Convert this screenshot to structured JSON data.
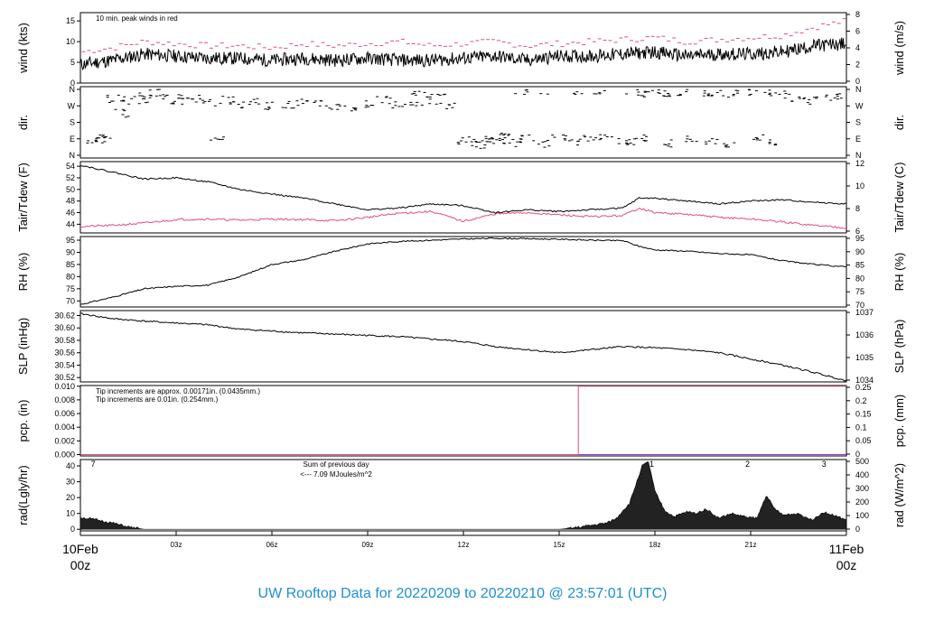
{
  "footer": {
    "title": "UW Rooftop Data for 20220209  to  20220210 @ 23:57:01  (UTC)"
  },
  "colors": {
    "line": "#000000",
    "peak": "#e0507a",
    "dew": "#e0507a",
    "rain_fine": "#e0507a",
    "rain_coarse": "#1e8fd0",
    "solar_note": "#9b30d0",
    "footer": "#1e8fd0",
    "date_labels": "#e0507a"
  },
  "time_axis": {
    "ticks": [
      {
        "hour": 0,
        "label": ""
      },
      {
        "hour": 3,
        "label": "03z"
      },
      {
        "hour": 6,
        "label": "06z"
      },
      {
        "hour": 9,
        "label": "09z"
      },
      {
        "hour": 12,
        "label": "12z"
      },
      {
        "hour": 15,
        "label": "15z"
      },
      {
        "hour": 18,
        "label": "18z"
      },
      {
        "hour": 21,
        "label": "21z"
      },
      {
        "hour": 24,
        "label": ""
      }
    ],
    "start_label": {
      "day": "10Feb",
      "time": "00z"
    },
    "end_label": {
      "day": "11Feb",
      "time": "00z"
    }
  },
  "chart_data": [
    {
      "type": "line",
      "id": "wind",
      "ylabel": "wind (kts)",
      "ylabel_right": "wind (m/s)",
      "ylim": [
        0,
        17
      ],
      "yticks": [
        "0",
        "5",
        "10",
        "15"
      ],
      "yticks_right": [
        "0",
        "2",
        "4",
        "6",
        "8"
      ],
      "annotation": "10 min. peak winds in red",
      "x": [
        0,
        1,
        2,
        3,
        4,
        5,
        6,
        7,
        8,
        9,
        10,
        11,
        12,
        13,
        14,
        15,
        16,
        17,
        18,
        19,
        20,
        21,
        22,
        23,
        24
      ],
      "series": [
        {
          "values": [
            4.5,
            5.5,
            7.0,
            6.5,
            6.0,
            6.0,
            5.5,
            6.0,
            5.5,
            6.0,
            5.5,
            5.5,
            6.0,
            6.5,
            5.5,
            6.5,
            6.5,
            7.0,
            7.5,
            6.5,
            7.0,
            7.0,
            7.5,
            9.0,
            9.5
          ]
        },
        {
          "values": [
            7.5,
            8.5,
            10.0,
            9.5,
            9.0,
            9.0,
            8.5,
            9.5,
            9.0,
            9.5,
            10.0,
            9.0,
            9.5,
            10.0,
            9.0,
            9.5,
            10.0,
            10.5,
            11.0,
            10.0,
            10.5,
            11.0,
            11.5,
            13.5,
            15.0
          ]
        }
      ]
    },
    {
      "type": "scatter",
      "id": "dir",
      "ylabel": "dir.",
      "ylabel_right": "dir.",
      "yticks": [
        "N",
        "E",
        "S",
        "W",
        "N"
      ],
      "yticks_right": [
        "N",
        "E",
        "S",
        "W",
        "N"
      ],
      "points": [
        [
          0.3,
          80
        ],
        [
          0.6,
          90
        ],
        [
          0.8,
          100
        ],
        [
          1.0,
          310
        ],
        [
          1.3,
          230
        ],
        [
          1.5,
          300
        ],
        [
          1.8,
          320
        ],
        [
          2.0,
          300
        ],
        [
          2.3,
          340
        ],
        [
          2.6,
          320
        ],
        [
          3.0,
          300
        ],
        [
          3.3,
          330
        ],
        [
          3.6,
          310
        ],
        [
          4.0,
          290
        ],
        [
          4.3,
          80
        ],
        [
          4.6,
          300
        ],
        [
          5.0,
          280
        ],
        [
          5.5,
          290
        ],
        [
          6.0,
          270
        ],
        [
          6.5,
          280
        ],
        [
          7.0,
          290
        ],
        [
          7.5,
          280
        ],
        [
          8.0,
          270
        ],
        [
          8.5,
          260
        ],
        [
          9.0,
          280
        ],
        [
          9.5,
          300
        ],
        [
          10.0,
          270
        ],
        [
          10.5,
          290
        ],
        [
          11.0,
          300
        ],
        [
          11.5,
          270
        ],
        [
          12.0,
          80
        ],
        [
          12.3,
          70
        ],
        [
          12.6,
          60
        ],
        [
          13.0,
          80
        ],
        [
          13.3,
          100
        ],
        [
          13.6,
          70
        ],
        [
          14.0,
          90
        ],
        [
          14.5,
          60
        ],
        [
          15.0,
          90
        ],
        [
          15.5,
          70
        ],
        [
          16.0,
          100
        ],
        [
          16.5,
          90
        ],
        [
          17.0,
          80
        ],
        [
          17.3,
          350
        ],
        [
          17.6,
          340
        ],
        [
          18.0,
          355
        ],
        [
          18.3,
          345
        ],
        [
          18.6,
          340
        ],
        [
          19.0,
          350
        ],
        [
          19.5,
          340
        ],
        [
          20.0,
          345
        ],
        [
          20.5,
          335
        ],
        [
          21.0,
          350
        ],
        [
          21.5,
          340
        ],
        [
          22.0,
          330
        ],
        [
          22.5,
          310
        ],
        [
          23.0,
          300
        ],
        [
          23.5,
          320
        ],
        [
          23.9,
          320
        ],
        [
          10.6,
          345
        ],
        [
          11.2,
          350
        ],
        [
          13.8,
          350
        ],
        [
          14.6,
          355
        ],
        [
          15.5,
          352
        ],
        [
          16.2,
          348
        ],
        [
          12.8,
          85
        ],
        [
          13.1,
          75
        ],
        [
          17.2,
          70
        ],
        [
          17.8,
          95
        ],
        [
          18.4,
          65
        ],
        [
          19.2,
          85
        ],
        [
          19.8,
          80
        ],
        [
          20.3,
          65
        ],
        [
          21.2,
          95
        ],
        [
          21.8,
          70
        ]
      ]
    },
    {
      "type": "line",
      "id": "temperature",
      "ylabel": "Tair/Tdew (F)",
      "ylabel_right": "Tair/Tdew (C)",
      "ylim": [
        42.5,
        54.8
      ],
      "yticks": [
        "44",
        "46",
        "48",
        "50",
        "52",
        "54"
      ],
      "yticks_right": [
        "6",
        "8",
        "10",
        "12"
      ],
      "x": [
        0,
        1,
        2,
        3,
        4,
        5,
        6,
        7,
        8,
        9,
        10,
        11,
        12,
        13,
        14,
        15,
        16,
        17,
        17.5,
        18,
        19,
        20,
        21,
        22,
        23,
        24
      ],
      "series": [
        {
          "name": "Tair",
          "values": [
            54.2,
            53.0,
            51.8,
            52.0,
            51.3,
            50.0,
            49.2,
            48.5,
            47.5,
            46.5,
            46.8,
            47.5,
            47.2,
            46.0,
            46.5,
            46.2,
            46.5,
            46.8,
            48.5,
            48.5,
            48.0,
            47.5,
            48.0,
            48.2,
            47.8,
            47.5
          ]
        },
        {
          "name": "Tdew",
          "values": [
            43.6,
            43.8,
            44.2,
            44.8,
            44.9,
            44.7,
            44.9,
            44.8,
            44.6,
            45.2,
            45.9,
            46.2,
            44.5,
            45.8,
            46.0,
            45.6,
            45.3,
            45.5,
            46.8,
            46.0,
            45.7,
            45.2,
            44.9,
            44.4,
            43.8,
            43.4
          ]
        }
      ]
    },
    {
      "type": "line",
      "id": "rh",
      "ylabel": "RH (%)",
      "ylabel_right": "RH (%)",
      "ylim": [
        67.5,
        96.5
      ],
      "yticks": [
        "70",
        "75",
        "80",
        "85",
        "90",
        "95"
      ],
      "yticks_right": [
        "70",
        "75",
        "80",
        "85",
        "90",
        "95"
      ],
      "x": [
        0,
        1,
        2,
        3,
        4,
        5,
        6,
        7,
        8,
        9,
        10,
        11,
        12,
        13,
        14,
        15,
        16,
        17,
        17.5,
        18,
        19,
        20,
        21,
        22,
        23,
        24
      ],
      "series": [
        {
          "values": [
            68.5,
            71.5,
            75.0,
            76.0,
            76.5,
            80.0,
            85.0,
            87.0,
            90.5,
            93.5,
            94.5,
            95.0,
            95.5,
            95.8,
            95.6,
            95.4,
            95.0,
            94.8,
            92.5,
            91.0,
            90.5,
            89.5,
            89.0,
            86.5,
            85.0,
            84.0
          ]
        }
      ]
    },
    {
      "type": "line",
      "id": "pressure",
      "ylabel": "SLP (inHg)",
      "ylabel_right": "SLP (hPa)",
      "ylim": [
        30.513,
        30.628
      ],
      "yticks": [
        "30.52",
        "30.54",
        "30.56",
        "30.58",
        "30.60",
        "30.62"
      ],
      "yticks_right": [
        "1034",
        "1035",
        "1036",
        "1037"
      ],
      "x": [
        0,
        1,
        2,
        3,
        4,
        5,
        6,
        7,
        8,
        9,
        10,
        11,
        12,
        13,
        14,
        15,
        16,
        17,
        18,
        19,
        20,
        21,
        22,
        23,
        24
      ],
      "series": [
        {
          "values": [
            30.623,
            30.615,
            30.611,
            30.608,
            30.605,
            30.598,
            30.595,
            30.592,
            30.59,
            30.588,
            30.586,
            30.582,
            30.578,
            30.57,
            30.565,
            30.56,
            30.565,
            30.57,
            30.568,
            30.565,
            30.56,
            30.55,
            30.54,
            30.528,
            30.515
          ]
        }
      ]
    },
    {
      "type": "line",
      "id": "precip",
      "ylabel": "pcp. (in)",
      "ylabel_right": "pcp. (mm)",
      "ylim": [
        -0.0002,
        0.0101
      ],
      "yticks": [
        "0.000",
        "0.002",
        "0.004",
        "0.006",
        "0.008",
        "0.010"
      ],
      "yticks_right": [
        "0",
        "0.05",
        "0.1",
        "0.15",
        "0.2",
        "0.25"
      ],
      "annotations": [
        "Tip increments are approx. 0.00171in. (0.0435mm.)",
        "Tip increments are 0.01in. (0.254mm.)"
      ],
      "x": [
        0,
        15.6,
        15.6,
        24
      ],
      "series": [
        {
          "name": "fine",
          "values": [
            0,
            0,
            0.01,
            0.01
          ]
        },
        {
          "name": "coarse",
          "values": [
            0,
            0,
            0,
            0
          ]
        }
      ]
    },
    {
      "type": "area",
      "id": "solar",
      "ylabel": "rad(Lgly/hr)",
      "ylabel_right": "rad (W/m^2)",
      "ylim": [
        -1,
        44
      ],
      "yticks": [
        "0",
        "10",
        "20",
        "30",
        "40"
      ],
      "yticks_right": [
        "0",
        "100",
        "200",
        "300",
        "400",
        "500"
      ],
      "annotation_lines": [
        "Sum of previous day",
        "<--- 7.09 MJoules/m^2"
      ],
      "markers": [
        {
          "hour": 0.4,
          "label": "7"
        },
        {
          "hour": 17.9,
          "label": "1"
        },
        {
          "hour": 20.9,
          "label": "2"
        },
        {
          "hour": 23.3,
          "label": "3"
        }
      ],
      "x": [
        0,
        0.5,
        1.0,
        1.5,
        1.9,
        2.0,
        15.0,
        15.5,
        16.0,
        16.5,
        16.8,
        17.0,
        17.2,
        17.4,
        17.6,
        17.8,
        18.0,
        18.3,
        18.6,
        19.0,
        19.3,
        19.6,
        20.0,
        20.4,
        20.8,
        21.2,
        21.5,
        21.7,
        22.0,
        22.5,
        22.9,
        23.3,
        23.7,
        24.0
      ],
      "values": [
        7.5,
        6.0,
        4.0,
        1.5,
        0.3,
        0,
        0,
        1.0,
        2.5,
        4.0,
        7.0,
        12.0,
        16.0,
        28.0,
        40.0,
        42.5,
        24.0,
        12.0,
        8.0,
        11.0,
        10.0,
        13.0,
        7.0,
        10.0,
        8.0,
        7.0,
        22.0,
        14.0,
        9.0,
        10.0,
        6.0,
        11.0,
        8.0,
        6.0
      ]
    }
  ]
}
